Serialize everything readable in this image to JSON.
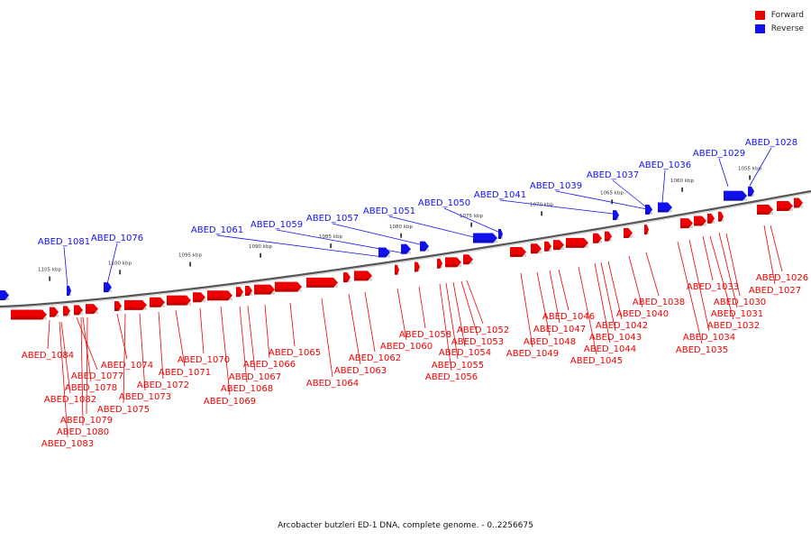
{
  "legend": [
    {
      "label": "Forward",
      "color": "#ee0000"
    },
    {
      "label": "Reverse",
      "color": "#1111ee"
    }
  ],
  "colors": {
    "forward": "#ee0000",
    "reverse": "#1111ee",
    "backbone": "#888888"
  },
  "caption": "Arcobacter butzleri ED-1 DNA, complete genome. - 0..2256675",
  "scale_ticks": [
    "1105 kbp",
    "1100 kbp",
    "1095 kbp",
    "1090 kbp",
    "1085 kbp",
    "1080 kbp",
    "1075 kbp",
    "1070 kbp",
    "1065 kbp",
    "1060 kbp",
    "1055 kbp"
  ],
  "genes_reverse": [
    "ABED_1081",
    "ABED_1076",
    "ABED_1061",
    "ABED_1059",
    "ABED_1057",
    "ABED_1051",
    "ABED_1050",
    "ABED_1041",
    "ABED_1039",
    "ABED_1037",
    "ABED_1036",
    "ABED_1029",
    "ABED_1028"
  ],
  "genes_forward": [
    "ABED_1084",
    "ABED_1082",
    "ABED_1083",
    "ABED_1077",
    "ABED_1078",
    "ABED_1079",
    "ABED_1080",
    "ABED_1074",
    "ABED_1075",
    "ABED_1073",
    "ABED_1072",
    "ABED_1071",
    "ABED_1070",
    "ABED_1069",
    "ABED_1068",
    "ABED_1067",
    "ABED_1066",
    "ABED_1065",
    "ABED_1064",
    "ABED_1063",
    "ABED_1062",
    "ABED_1060",
    "ABED_1058",
    "ABED_1056",
    "ABED_1055",
    "ABED_1054",
    "ABED_1053",
    "ABED_1052",
    "ABED_1049",
    "ABED_1048",
    "ABED_1047",
    "ABED_1046",
    "ABED_1045",
    "ABED_1044",
    "ABED_1043",
    "ABED_1042",
    "ABED_1040",
    "ABED_1038",
    "ABED_1035",
    "ABED_1034",
    "ABED_1033",
    "ABED_1032",
    "ABED_1031",
    "ABED_1030",
    "ABED_1027",
    "ABED_1026"
  ]
}
